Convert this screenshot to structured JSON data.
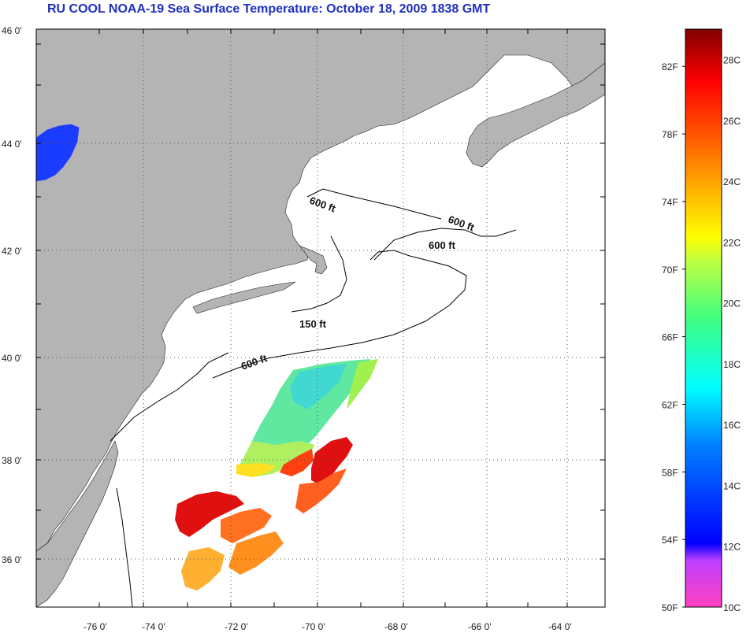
{
  "title": "RU COOL  NOAA-19  Sea Surface Temperature:  October 18, 2009 1838 GMT",
  "map": {
    "lat_labels": [
      "46 0'",
      "44 0'",
      "42 0'",
      "40 0'",
      "38 0'",
      "36 0'"
    ],
    "lon_labels": [
      "-76 0'",
      "-74 0'",
      "-72 0'",
      "-70 0'",
      "-68 0'",
      "-66 0'",
      "-64 0'"
    ],
    "contour_labels": [
      "600 ft",
      "600 ft",
      "600 ft",
      "150 ft",
      "600 ft"
    ],
    "land_color": "#b4b4b4",
    "water_color": "#ffffff"
  },
  "colorbar": {
    "fahrenheit": [
      "82F",
      "78F",
      "74F",
      "70F",
      "66F",
      "62F",
      "58F",
      "54F",
      "50F"
    ],
    "celsius": [
      "28C",
      "26C",
      "24C",
      "22C",
      "20C",
      "18C",
      "16C",
      "14C",
      "12C",
      "10C"
    ],
    "colors_bottom_to_top": [
      "#ff40c0",
      "#a040ff",
      "#0000ff",
      "#0080ff",
      "#00ffff",
      "#40ff80",
      "#c0ff40",
      "#ffff00",
      "#ffa000",
      "#ff4000",
      "#ff0000",
      "#800000"
    ]
  }
}
